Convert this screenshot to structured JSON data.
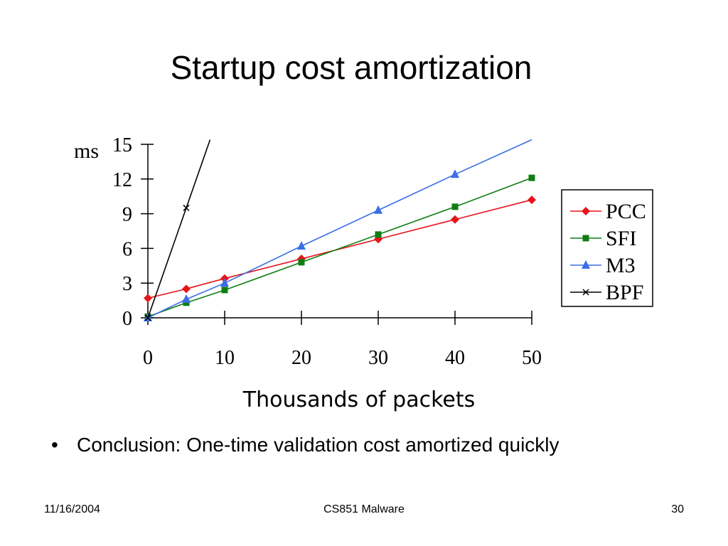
{
  "slide": {
    "title": "Startup cost amortization",
    "bullet_symbol": "•",
    "bullet_text": "Conclusion: One-time validation cost amortized quickly"
  },
  "footer": {
    "date": "11/16/2004",
    "course": "CS851 Malware",
    "page": "30"
  },
  "chart_data": {
    "type": "line",
    "title": "",
    "xlabel": "Thousands of packets",
    "ylabel": "ms",
    "xlim": [
      0,
      50
    ],
    "ylim": [
      0,
      15
    ],
    "xticks": [
      0,
      10,
      20,
      30,
      40,
      50
    ],
    "yticks": [
      0,
      3,
      6,
      9,
      12,
      15
    ],
    "grid": false,
    "legend_position": "right",
    "series": [
      {
        "name": "PCC",
        "color": "#e8141a",
        "marker": "diamond",
        "x": [
          0,
          5,
          10,
          20,
          30,
          40,
          50
        ],
        "y": [
          1.7,
          2.5,
          3.4,
          5.1,
          6.8,
          8.5,
          10.2
        ]
      },
      {
        "name": "SFI",
        "color": "#0f7d12",
        "marker": "square",
        "x": [
          0,
          5,
          10,
          20,
          30,
          40,
          50
        ],
        "y": [
          0.1,
          1.3,
          2.4,
          4.8,
          7.2,
          9.6,
          12.1
        ]
      },
      {
        "name": "M3",
        "color": "#3a6de6",
        "marker": "triangle",
        "x": [
          0,
          5,
          10,
          20,
          30,
          40,
          50
        ],
        "y": [
          0,
          1.6,
          3.0,
          6.2,
          9.3,
          12.4,
          15.4
        ]
      },
      {
        "name": "BPF",
        "color": "#000000",
        "marker": "x",
        "x": [
          0,
          5,
          8.1
        ],
        "y": [
          0,
          9.5,
          15.4
        ]
      }
    ]
  }
}
